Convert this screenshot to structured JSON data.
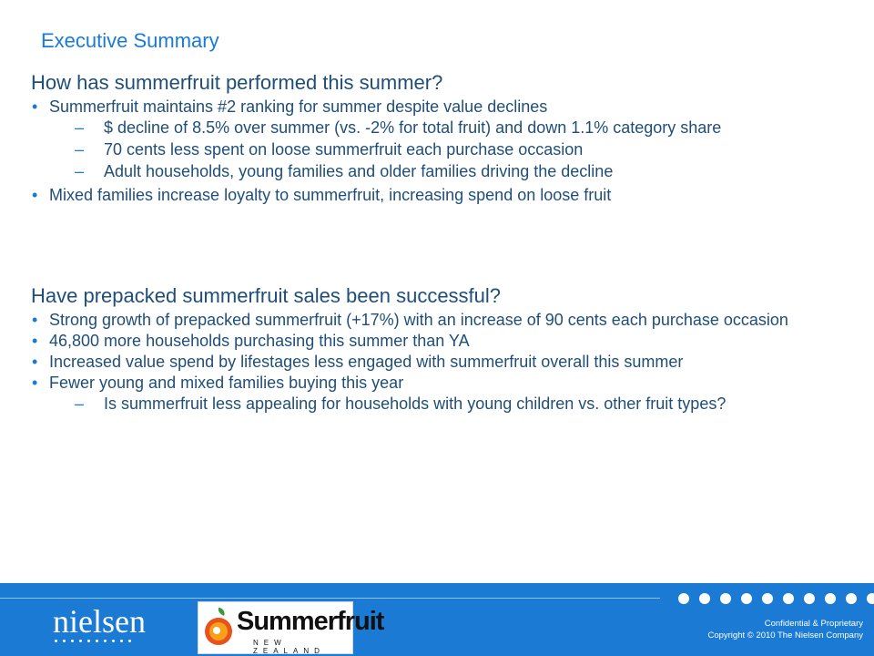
{
  "title": "Executive Summary",
  "sections": [
    {
      "heading": "How has summerfruit performed this summer?",
      "bullets": [
        {
          "text": "Summerfruit maintains #2 ranking for summer despite value declines",
          "subs": [
            "$ decline of  8.5% over summer (vs. -2% for total fruit) and down 1.1% category share",
            "70 cents less spent on loose summerfruit each purchase occasion",
            "Adult households, young families and older families driving the decline"
          ]
        },
        {
          "text": "Mixed families increase loyalty to summerfruit, increasing spend on loose fruit",
          "subs": []
        }
      ]
    },
    {
      "heading": "Have prepacked summerfruit sales been successful?",
      "bullets": [
        {
          "text": "Strong growth of prepacked summerfruit (+17%) with an increase of 90 cents each purchase occasion",
          "subs": []
        },
        {
          "text": "46,800 more households purchasing this summer than YA",
          "subs": []
        },
        {
          "text": "Increased value spend by lifestages less engaged with summerfruit overall this summer",
          "subs": []
        },
        {
          "text": "Fewer young and mixed families buying this year",
          "subs": [
            "Is summerfruit less appealing for households with young children vs. other fruit types?"
          ]
        }
      ]
    }
  ],
  "footer": {
    "nielsen_logo": "nielsen",
    "summerfruit_logo": "Summerfruit",
    "summerfruit_logo_sub": "NEW ZEALAND",
    "legal_line_1": "Confidential & Proprietary",
    "legal_line_2": "Copyright © 2010 The Nielsen Company"
  },
  "colors": {
    "accent": "#1a7ad4",
    "text": "#1f4e79",
    "footer_bg": "#1a7ad4"
  }
}
